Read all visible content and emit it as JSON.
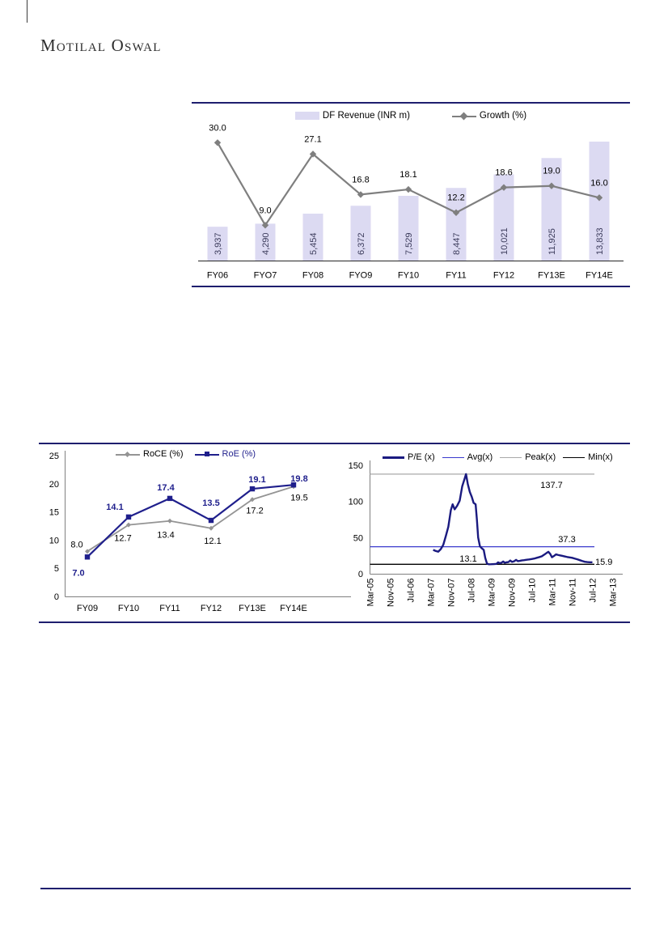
{
  "brand": {
    "logo_text": "Motilal Oswal"
  },
  "colors": {
    "navy_rule": "#1e1e6e",
    "bar_fill": "#dcdaf2",
    "bar_label": "#3c3c5c",
    "growth_gray": "#7f7f7f",
    "roce_gray": "#949494",
    "roe_navy": "#1f1f8c",
    "pe_navy": "#1a1a80",
    "avg_blue": "#3a3acd",
    "peak_gray": "#a8a8a8",
    "min_black": "#000000",
    "axis_gray": "#808080",
    "axis_dark": "#262626",
    "text_black": "#000000"
  },
  "chart_data": [
    {
      "id": "df-revenue-growth",
      "type": "bar",
      "legend_position": "top",
      "categories": [
        "FY06",
        "FYO7",
        "FY08",
        "FYO9",
        "FY10",
        "FY11",
        "FY12",
        "FY13E",
        "FY14E"
      ],
      "series": [
        {
          "name": "DF Revenue (INR m)",
          "kind": "bar",
          "values": [
            3937,
            4290,
            5454,
            6372,
            7529,
            8447,
            10021,
            11925,
            13833
          ],
          "value_labels": [
            "3,937",
            "4,290",
            "5,454",
            "6,372",
            "7,529",
            "8,447",
            "10,021",
            "11,925",
            "13,833"
          ]
        },
        {
          "name": "Growth (%)",
          "kind": "line",
          "values": [
            30.0,
            9.0,
            27.1,
            16.8,
            18.1,
            12.2,
            18.6,
            19.0,
            16.0
          ],
          "value_labels": [
            "30.0",
            "9.0",
            "27.1",
            "16.8",
            "18.1",
            "12.2",
            "18.6",
            "19.0",
            "16.0"
          ]
        }
      ],
      "value_axis_visible": false,
      "growth_ylim": [
        0,
        33
      ]
    },
    {
      "id": "roce-roe",
      "type": "line",
      "legend_position": "top",
      "categories": [
        "FY09",
        "FY10",
        "FY11",
        "FY12",
        "FY13E",
        "FY14E"
      ],
      "ylim": [
        0,
        25
      ],
      "yticks": [
        0,
        5,
        10,
        15,
        20,
        25
      ],
      "series": [
        {
          "name": "RoCE (%)",
          "values": [
            8.0,
            12.7,
            13.4,
            12.1,
            17.2,
            19.5
          ],
          "value_labels": [
            "8.0",
            "12.7",
            "13.4",
            "12.1",
            "17.2",
            "19.5"
          ],
          "label_offsets": [
            [
              -13,
              -5
            ],
            [
              -7,
              20
            ],
            [
              -5,
              21
            ],
            [
              2,
              19
            ],
            [
              3,
              17
            ],
            [
              7,
              17
            ]
          ]
        },
        {
          "name": "RoE (%)",
          "values": [
            7.0,
            14.1,
            17.4,
            13.5,
            19.1,
            19.8
          ],
          "value_labels": [
            "7.0",
            "14.1",
            "17.4",
            "13.5",
            "19.1",
            "19.8"
          ],
          "label_offsets": [
            [
              -11,
              23
            ],
            [
              -17,
              -9
            ],
            [
              -5,
              -10
            ],
            [
              0,
              -18
            ],
            [
              6,
              -8
            ],
            [
              7,
              -4
            ]
          ]
        }
      ]
    },
    {
      "id": "pe-band",
      "type": "line",
      "legend_position": "top",
      "x_tick_labels": [
        "Mar-05",
        "Nov-05",
        "Jul-06",
        "Mar-07",
        "Nov-07",
        "Jul-08",
        "Mar-09",
        "Nov-09",
        "Jul-10",
        "Mar-11",
        "Nov-11",
        "Jul-12",
        "Mar-13"
      ],
      "x_month_span": 96,
      "ylim": [
        0,
        150
      ],
      "yticks": [
        0,
        50,
        100,
        150
      ],
      "series": [
        {
          "name": "P/E (x)",
          "points": [
            [
              25,
              33
            ],
            [
              26,
              31.5
            ],
            [
              27,
              30.5
            ],
            [
              28,
              34
            ],
            [
              29,
              40
            ],
            [
              30,
              52
            ],
            [
              31,
              65
            ],
            [
              32,
              88
            ],
            [
              32.7,
              96
            ],
            [
              33.5,
              89
            ],
            [
              34.5,
              94
            ],
            [
              35.5,
              101
            ],
            [
              36.5,
              121
            ],
            [
              37.5,
              132
            ],
            [
              38,
              137.7
            ],
            [
              38.7,
              124
            ],
            [
              39.5,
              113
            ],
            [
              40.3,
              106
            ],
            [
              41,
              98
            ],
            [
              41.8,
              96
            ],
            [
              42.3,
              75
            ],
            [
              42.8,
              50
            ],
            [
              43.5,
              38
            ],
            [
              44.3,
              35
            ],
            [
              45,
              33
            ],
            [
              45.6,
              22
            ],
            [
              46.3,
              14
            ],
            [
              47,
              13.1
            ],
            [
              48,
              13.2
            ],
            [
              49,
              13.4
            ],
            [
              50,
              13.6
            ],
            [
              50.7,
              15.8
            ],
            [
              51.3,
              14.6
            ],
            [
              52,
              15.2
            ],
            [
              52.7,
              17
            ],
            [
              53.3,
              15.2
            ],
            [
              54,
              15.8
            ],
            [
              54.8,
              16.2
            ],
            [
              55.5,
              18.3
            ],
            [
              56.2,
              16.4
            ],
            [
              57,
              17.2
            ],
            [
              57.8,
              19.2
            ],
            [
              58.5,
              17.4
            ],
            [
              59.3,
              17.8
            ],
            [
              60,
              18.4
            ],
            [
              61,
              18.8
            ],
            [
              62,
              19.4
            ],
            [
              63,
              19.8
            ],
            [
              64,
              20.4
            ],
            [
              65,
              21
            ],
            [
              66,
              22
            ],
            [
              67,
              23
            ],
            [
              68,
              24.2
            ],
            [
              69,
              26.5
            ],
            [
              70,
              29
            ],
            [
              70.6,
              30.3
            ],
            [
              71.3,
              27.5
            ],
            [
              72,
              22.8
            ],
            [
              72.8,
              24.6
            ],
            [
              73.6,
              26.8
            ],
            [
              74.4,
              26
            ],
            [
              75.2,
              25.4
            ],
            [
              76,
              24.8
            ],
            [
              77,
              24
            ],
            [
              78,
              23.2
            ],
            [
              79,
              22.6
            ],
            [
              80,
              22
            ],
            [
              81,
              21
            ],
            [
              82,
              20
            ],
            [
              83,
              18.8
            ],
            [
              84,
              17.6
            ],
            [
              85,
              16.6
            ],
            [
              86,
              16.1
            ],
            [
              87,
              15.9
            ],
            [
              88,
              15.9
            ]
          ]
        }
      ],
      "ref_lines": [
        {
          "name": "Avg(x)",
          "value": 37.3,
          "label": "37.3"
        },
        {
          "name": "Peak(x)",
          "value": 137.7,
          "label": "137.7"
        },
        {
          "name": "Min(x)",
          "value": 13.1,
          "label": "13.1"
        }
      ],
      "end_label": "15.9"
    }
  ]
}
